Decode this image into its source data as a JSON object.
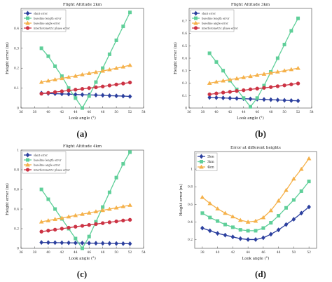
{
  "captions": [
    "(a)",
    "(b)",
    "(c)",
    "(d)"
  ],
  "chart_data": [
    {
      "type": "line",
      "title": "Flight Altitude 2km",
      "xlabel": "Look angle (°)",
      "ylabel": "Height error (m)",
      "xlim": [
        36,
        54
      ],
      "ylim": [
        0,
        0.5
      ],
      "xticks": [
        36,
        38,
        40,
        42,
        44,
        46,
        48,
        50,
        52,
        54
      ],
      "yticks": [
        0,
        0.1,
        0.2,
        0.3,
        0.4
      ],
      "tick_labels_x": [
        "36",
        "38",
        "40",
        "42",
        "44",
        "46",
        "48",
        "50",
        "52",
        "54"
      ],
      "tick_labels_y": [
        "0",
        "0.1",
        "0.2",
        "0.3",
        "0.4"
      ],
      "legend_position": "top-left",
      "x": [
        39,
        40,
        41,
        42,
        43,
        44,
        45,
        46,
        47,
        48,
        49,
        50,
        51,
        52
      ],
      "series": [
        {
          "name": "slant error",
          "color": "#2b3f9e",
          "marker": "diamond",
          "values": [
            0.075,
            0.073,
            0.072,
            0.071,
            0.07,
            0.068,
            0.067,
            0.066,
            0.065,
            0.064,
            0.062,
            0.061,
            0.06,
            0.058
          ]
        },
        {
          "name": "baseline length error",
          "color": "#5fcf99",
          "marker": "square",
          "values": [
            0.3,
            0.26,
            0.21,
            0.16,
            0.1,
            0.05,
            0.0,
            0.06,
            0.13,
            0.2,
            0.27,
            0.34,
            0.41,
            0.48
          ]
        },
        {
          "name": "baseline angle error",
          "color": "#f5b14a",
          "marker": "triangle",
          "values": [
            0.13,
            0.137,
            0.143,
            0.149,
            0.155,
            0.161,
            0.168,
            0.174,
            0.18,
            0.186,
            0.193,
            0.2,
            0.207,
            0.215
          ]
        },
        {
          "name": "interferometric phase error",
          "color": "#cc3344",
          "marker": "circle",
          "values": [
            0.072,
            0.076,
            0.08,
            0.084,
            0.088,
            0.092,
            0.096,
            0.1,
            0.104,
            0.108,
            0.113,
            0.118,
            0.123,
            0.128
          ]
        }
      ]
    },
    {
      "type": "line",
      "title": "Flight Altitude 3km",
      "xlabel": "Look angle (°)",
      "ylabel": "Height error (m)",
      "xlim": [
        36,
        54
      ],
      "ylim": [
        0,
        0.8
      ],
      "xticks": [
        36,
        38,
        40,
        42,
        44,
        46,
        48,
        50,
        52,
        54
      ],
      "yticks": [
        0,
        0.1,
        0.2,
        0.3,
        0.4,
        0.5,
        0.6,
        0.7
      ],
      "tick_labels_x": [
        "36",
        "38",
        "40",
        "42",
        "44",
        "46",
        "48",
        "50",
        "52",
        "54"
      ],
      "tick_labels_y": [
        "0",
        "0.1",
        "0.2",
        "0.3",
        "0.4",
        "0.5",
        "0.6",
        "0.7"
      ],
      "legend_position": "top-left",
      "x": [
        39,
        40,
        41,
        42,
        43,
        44,
        45,
        46,
        47,
        48,
        49,
        50,
        51,
        52
      ],
      "series": [
        {
          "name": "slant error",
          "color": "#2b3f9e",
          "marker": "diamond",
          "values": [
            0.085,
            0.083,
            0.081,
            0.079,
            0.077,
            0.075,
            0.073,
            0.071,
            0.069,
            0.067,
            0.065,
            0.062,
            0.06,
            0.058
          ]
        },
        {
          "name": "baseline length error",
          "color": "#5fcf99",
          "marker": "square",
          "values": [
            0.44,
            0.37,
            0.3,
            0.22,
            0.15,
            0.08,
            0.01,
            0.08,
            0.18,
            0.29,
            0.4,
            0.51,
            0.62,
            0.72
          ]
        },
        {
          "name": "baseline angle error",
          "color": "#f5b14a",
          "marker": "triangle",
          "values": [
            0.2,
            0.21,
            0.219,
            0.228,
            0.237,
            0.246,
            0.255,
            0.264,
            0.273,
            0.282,
            0.291,
            0.3,
            0.31,
            0.32
          ]
        },
        {
          "name": "interferometric phase error",
          "color": "#cc3344",
          "marker": "circle",
          "values": [
            0.11,
            0.117,
            0.124,
            0.13,
            0.137,
            0.143,
            0.15,
            0.156,
            0.162,
            0.168,
            0.175,
            0.182,
            0.19,
            0.197
          ]
        }
      ]
    },
    {
      "type": "line",
      "title": "Flight Altitude 4km",
      "xlabel": "Look angle (°)",
      "ylabel": "Height error (m)",
      "xlim": [
        36,
        54
      ],
      "ylim": [
        0,
        1
      ],
      "xticks": [
        36,
        38,
        40,
        42,
        44,
        46,
        48,
        50,
        52,
        54
      ],
      "yticks": [
        0,
        0.2,
        0.4,
        0.6,
        0.8,
        1
      ],
      "tick_labels_x": [
        "36",
        "38",
        "40",
        "42",
        "44",
        "46",
        "48",
        "50",
        "52",
        "54"
      ],
      "tick_labels_y": [
        "0",
        "0.2",
        "0.4",
        "0.6",
        "0.8",
        "1"
      ],
      "legend_position": "top-left",
      "x": [
        39,
        40,
        41,
        42,
        43,
        44,
        45,
        46,
        47,
        48,
        49,
        50,
        51,
        52
      ],
      "series": [
        {
          "name": "slant error",
          "color": "#2b3f9e",
          "marker": "diamond",
          "values": [
            0.06,
            0.059,
            0.058,
            0.057,
            0.056,
            0.055,
            0.054,
            0.053,
            0.052,
            0.051,
            0.05,
            0.049,
            0.048,
            0.047
          ]
        },
        {
          "name": "baseline length error",
          "color": "#5fcf99",
          "marker": "square",
          "values": [
            0.6,
            0.5,
            0.4,
            0.3,
            0.2,
            0.1,
            0.0,
            0.12,
            0.27,
            0.42,
            0.57,
            0.72,
            0.86,
            0.98
          ]
        },
        {
          "name": "baseline angle error",
          "color": "#f5b14a",
          "marker": "triangle",
          "values": [
            0.27,
            0.283,
            0.296,
            0.309,
            0.322,
            0.335,
            0.348,
            0.361,
            0.374,
            0.387,
            0.4,
            0.413,
            0.426,
            0.44
          ]
        },
        {
          "name": "interferometric phase error",
          "color": "#cc3344",
          "marker": "circle",
          "values": [
            0.17,
            0.18,
            0.19,
            0.2,
            0.21,
            0.22,
            0.229,
            0.238,
            0.247,
            0.256,
            0.265,
            0.274,
            0.283,
            0.29
          ]
        }
      ]
    },
    {
      "type": "line",
      "title": "Error at different heights",
      "xlabel": "Look angle (°)",
      "ylabel": "Height error (m)",
      "xlim": [
        37,
        53
      ],
      "ylim": [
        0.1,
        1.2
      ],
      "xticks": [
        38,
        40,
        42,
        44,
        46,
        48,
        50,
        52
      ],
      "yticks": [
        0.2,
        0.4,
        0.6,
        0.8,
        1
      ],
      "tick_labels_x": [
        "38",
        "40",
        "42",
        "44",
        "46",
        "48",
        "50",
        "52"
      ],
      "tick_labels_y": [
        "0.2",
        "0.4",
        "0.6",
        "0.8",
        "1"
      ],
      "legend_position": "top-left",
      "x": [
        38,
        39,
        40,
        41,
        42,
        43,
        44,
        45,
        46,
        47,
        48,
        49,
        50,
        51,
        52
      ],
      "series": [
        {
          "name": "2km",
          "color": "#2b3f9e",
          "marker": "diamond",
          "values": [
            0.33,
            0.3,
            0.27,
            0.25,
            0.23,
            0.21,
            0.2,
            0.2,
            0.22,
            0.26,
            0.31,
            0.37,
            0.43,
            0.5,
            0.57
          ]
        },
        {
          "name": "3km",
          "color": "#5fcf99",
          "marker": "square",
          "values": [
            0.5,
            0.45,
            0.41,
            0.37,
            0.34,
            0.31,
            0.3,
            0.3,
            0.33,
            0.39,
            0.47,
            0.56,
            0.65,
            0.75,
            0.86
          ]
        },
        {
          "name": "4km",
          "color": "#f5b14a",
          "marker": "triangle",
          "values": [
            0.68,
            0.61,
            0.55,
            0.5,
            0.46,
            0.42,
            0.4,
            0.41,
            0.45,
            0.53,
            0.64,
            0.76,
            0.89,
            1.0,
            1.12
          ]
        }
      ]
    }
  ]
}
